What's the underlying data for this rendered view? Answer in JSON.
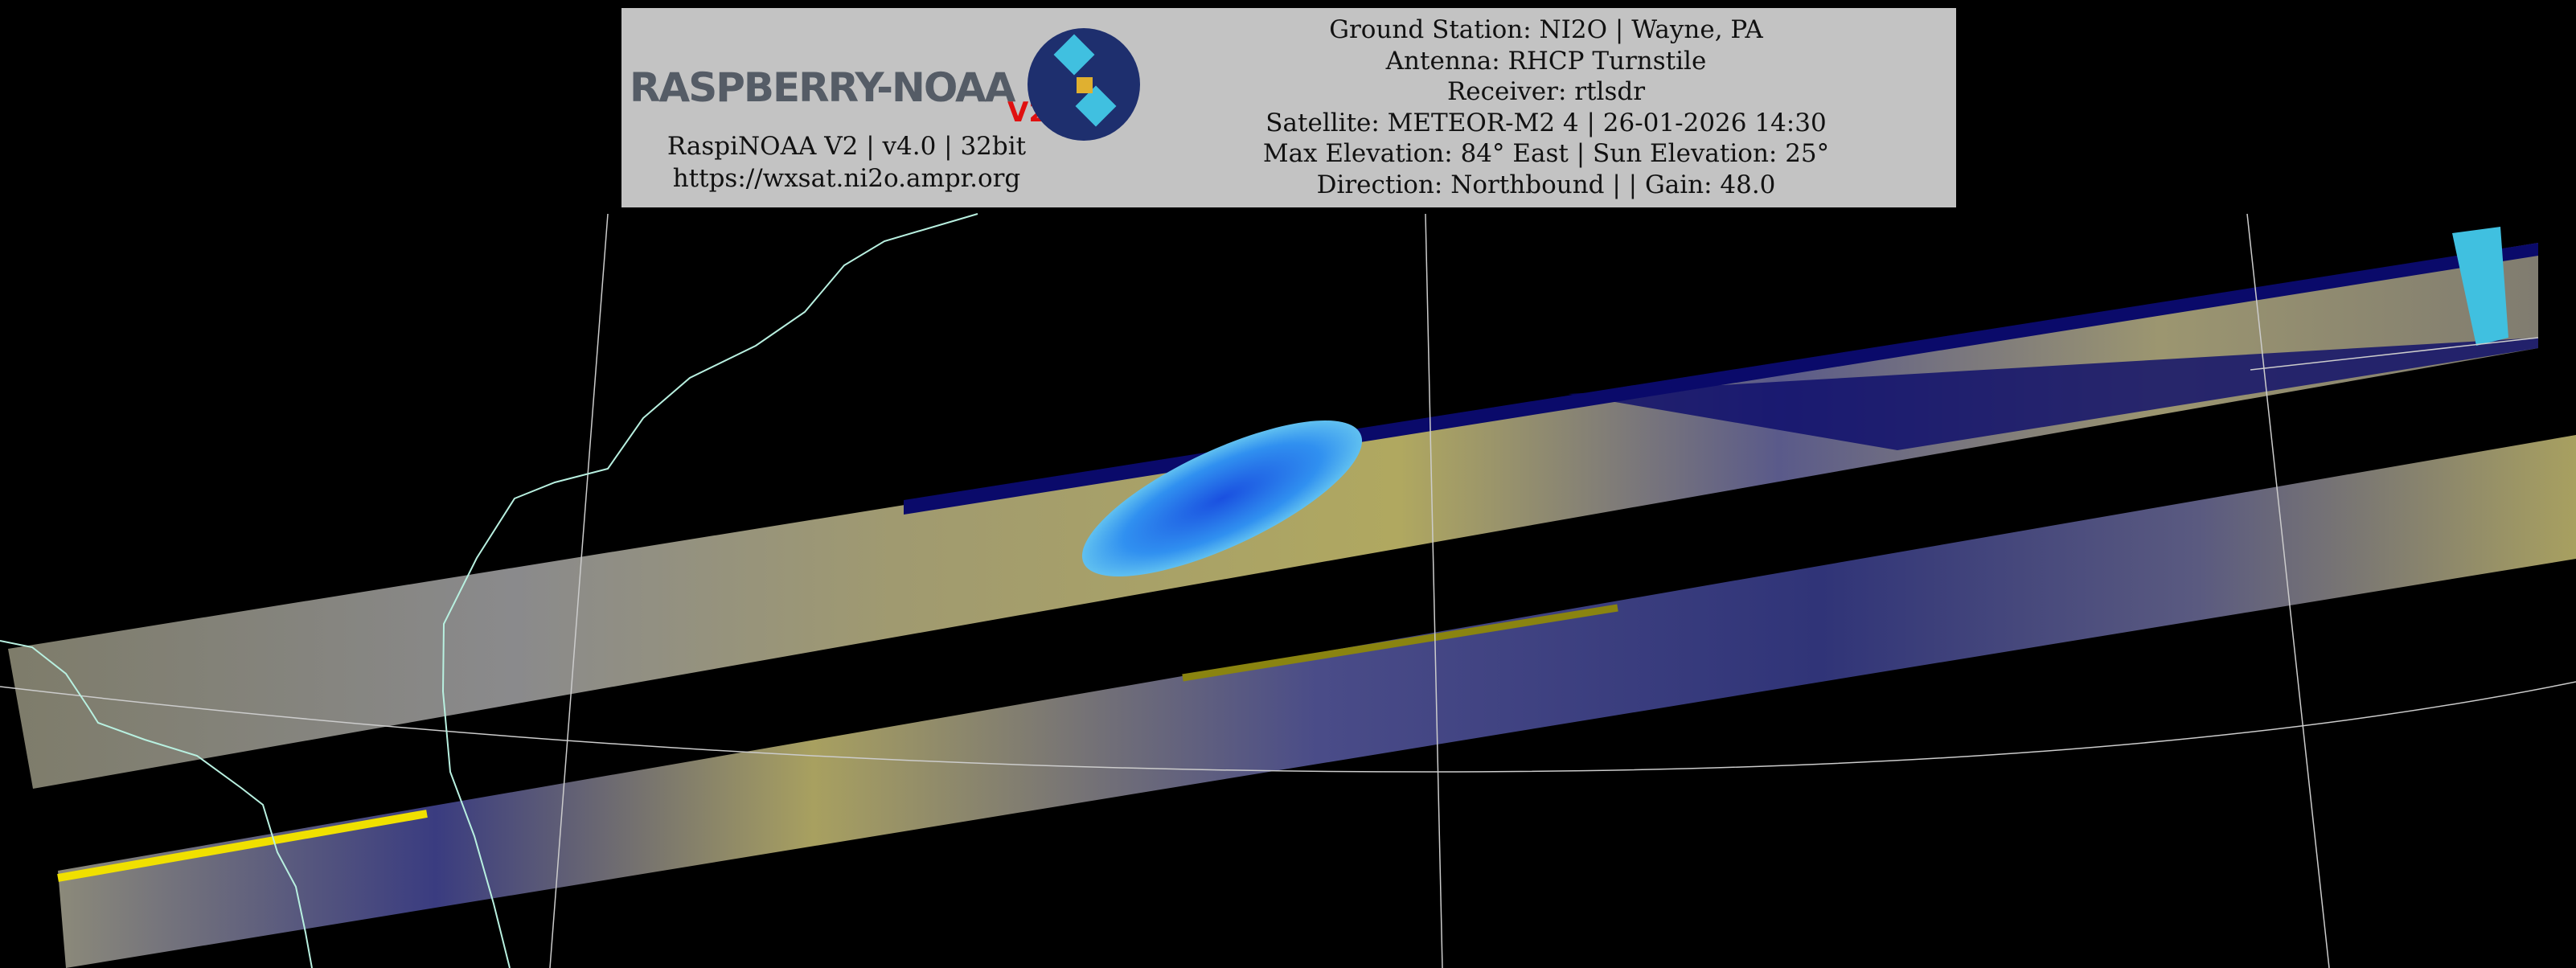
{
  "header": {
    "logo_text": "RASPBERRY-NOAA",
    "logo_version": "V2",
    "app_info": "RaspiNOAA V2 | v4.0 | 32bit",
    "url": "https://wxsat.ni2o.ampr.org",
    "ground_station": "Ground Station: NI2O | Wayne, PA",
    "antenna": "Antenna: RHCP Turnstile",
    "receiver": "Receiver: rtlsdr",
    "satellite": "Satellite: METEOR-M2 4 | 26-01-2026 14:30",
    "elevation": "Max Elevation: 84° East | Sun Elevation: 25°",
    "direction": "Direction: Northbound | | Gain: 48.0"
  },
  "colors": {
    "background": "#000000",
    "header_bg": "#c3c3c3",
    "cloud_yellow": "#c8c070",
    "ocean_blue": "#2a2f7a",
    "cold_cloud": "#2a7cf0",
    "coastline": "#b8f0e0",
    "grid": "#cccccc"
  }
}
